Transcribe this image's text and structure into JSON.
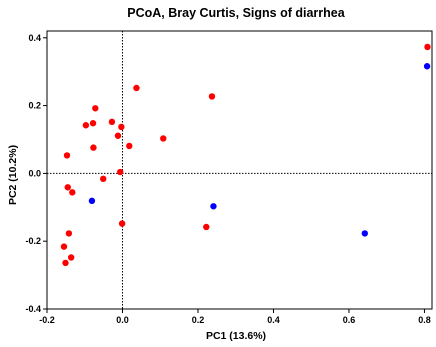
{
  "chart_data": {
    "type": "scatter",
    "title": "PCoA, Bray Curtis, Signs of diarrhea",
    "xlabel": "PC1 (13.6%)",
    "ylabel": "PC2 (10.2%)",
    "xlim": [
      -0.2,
      0.82
    ],
    "ylim": [
      -0.4,
      0.42
    ],
    "xticks": [
      -0.2,
      0,
      0.2,
      0.4,
      0.6,
      0.8
    ],
    "xtick_labels": [
      "-0.2",
      "0.0",
      "0.2",
      "0.4",
      "0.6",
      "0.8"
    ],
    "yticks": [
      -0.4,
      -0.2,
      0,
      0.2,
      0.4
    ],
    "ytick_labels": [
      "-0.4",
      "-0.2",
      "0.0",
      "0.2",
      "0.4"
    ],
    "reference_lines": {
      "x": 0,
      "y": 0,
      "style": "dotted"
    },
    "grid": false,
    "legend": "none",
    "series": [
      {
        "color": "#ff0000",
        "points": [
          {
            "x": 0.037,
            "y": 0.252
          },
          {
            "x": -0.072,
            "y": 0.192
          },
          {
            "x": -0.078,
            "y": 0.148
          },
          {
            "x": -0.097,
            "y": 0.142
          },
          {
            "x": -0.028,
            "y": 0.152
          },
          {
            "x": -0.003,
            "y": 0.137
          },
          {
            "x": -0.012,
            "y": 0.111
          },
          {
            "x": 0.108,
            "y": 0.103
          },
          {
            "x": 0.018,
            "y": 0.081
          },
          {
            "x": -0.077,
            "y": 0.076
          },
          {
            "x": -0.147,
            "y": 0.053
          },
          {
            "x": -0.006,
            "y": 0.004
          },
          {
            "x": -0.051,
            "y": -0.016
          },
          {
            "x": -0.145,
            "y": -0.041
          },
          {
            "x": -0.133,
            "y": -0.056
          },
          {
            "x": 0.237,
            "y": 0.227
          },
          {
            "x": -0.001,
            "y": -0.148
          },
          {
            "x": 0.222,
            "y": -0.158
          },
          {
            "x": -0.142,
            "y": -0.177
          },
          {
            "x": -0.155,
            "y": -0.216
          },
          {
            "x": -0.136,
            "y": -0.248
          },
          {
            "x": -0.151,
            "y": -0.264
          },
          {
            "x": 0.808,
            "y": 0.373
          }
        ]
      },
      {
        "color": "#0000ff",
        "points": [
          {
            "x": 0.807,
            "y": 0.316
          },
          {
            "x": -0.081,
            "y": -0.081
          },
          {
            "x": 0.241,
            "y": -0.097
          },
          {
            "x": 0.642,
            "y": -0.177
          }
        ]
      }
    ]
  }
}
